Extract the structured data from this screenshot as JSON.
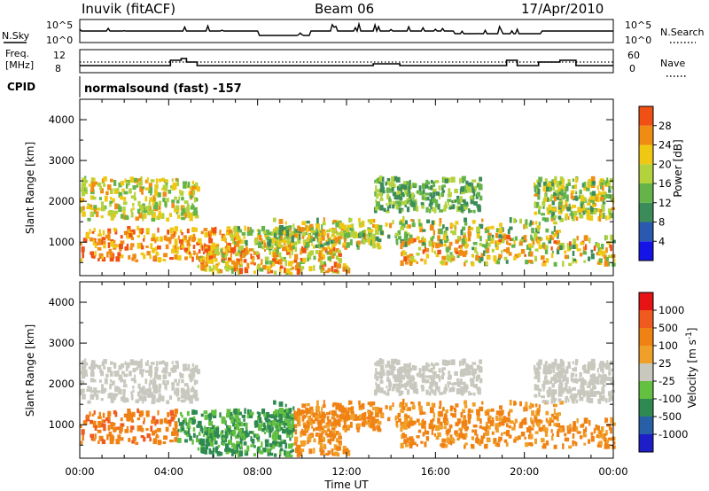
{
  "header": {
    "station": "Inuvik (fitACF)",
    "beam": "Beam 06",
    "date": "17/Apr/2010"
  },
  "panels": {
    "nsky": {
      "left_label": "N.Sky",
      "right_label": "N.Search",
      "left_ticks": [
        "10^5",
        "10^0"
      ],
      "right_ticks": [
        "10^5",
        "10^0"
      ]
    },
    "freq": {
      "left_label_1": "Freq.",
      "left_label_2": "[MHz]",
      "left_ticks": [
        "12",
        "8"
      ],
      "right_label": "Nave",
      "right_ticks": [
        "60",
        "0"
      ]
    },
    "cpid": {
      "label": "CPID",
      "text": "normalsound (fast) -157"
    }
  },
  "colors": {
    "power_scale": [
      "#1414e6",
      "#2a5ab0",
      "#3c8c5a",
      "#64b44a",
      "#b4d23c",
      "#f0c814",
      "#f08c14",
      "#f05014",
      "#e61414"
    ],
    "velocity_scale": [
      "#1e1ec8",
      "#2860a8",
      "#2e8a50",
      "#64c040",
      "#c8c8be",
      "#f0a028",
      "#f08214",
      "#f05a1e",
      "#e61414"
    ]
  },
  "chart_data": [
    {
      "type": "heatmap",
      "title": "",
      "xlabel": "Time UT",
      "ylabel": "Slant Range [km]",
      "x_ticks": [
        "00:00",
        "04:00",
        "08:00",
        "12:00",
        "16:00",
        "20:00",
        "00:00"
      ],
      "y_ticks": [
        "1000",
        "2000",
        "3000",
        "4000"
      ],
      "ylim": [
        180,
        4500
      ],
      "colorbar_label": "Power [dB]",
      "colorbar_ticks": [
        "4",
        "8",
        "12",
        "16",
        "20",
        "24",
        "28"
      ],
      "colorbar_range": [
        0,
        32
      ]
    },
    {
      "type": "heatmap",
      "title": "",
      "xlabel": "Time UT",
      "ylabel": "Slant Range [km]",
      "x_ticks": [
        "00:00",
        "04:00",
        "08:00",
        "12:00",
        "16:00",
        "20:00",
        "00:00"
      ],
      "y_ticks": [
        "1000",
        "2000",
        "3000",
        "4000"
      ],
      "ylim": [
        180,
        4500
      ],
      "colorbar_label": "Velocity [m s^-1]",
      "colorbar_ticks": [
        "1000",
        "500",
        "100",
        "25",
        "-25",
        "-100",
        "-500",
        "-1000"
      ]
    }
  ]
}
